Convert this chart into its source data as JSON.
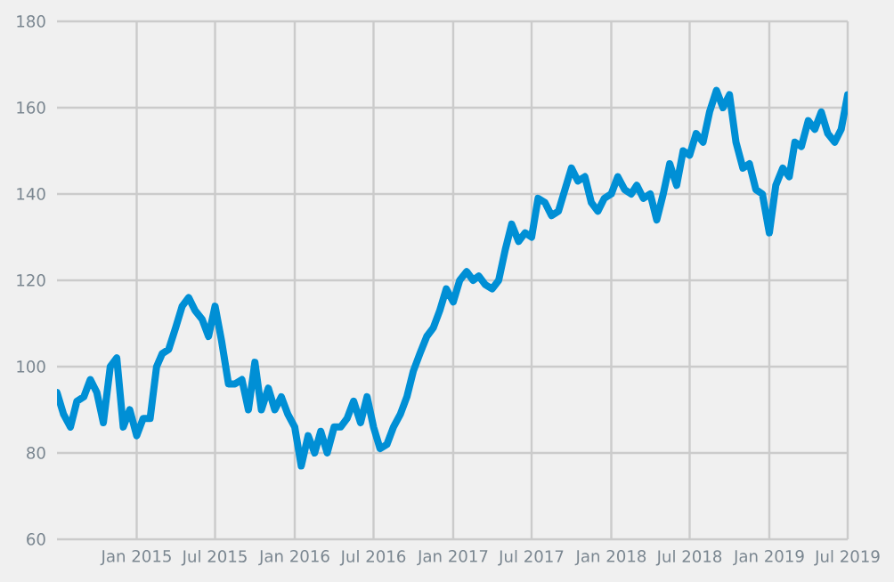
{
  "chart_data": {
    "type": "line",
    "x": [
      "2014-07-01",
      "2014-07-16",
      "2014-08-01",
      "2014-08-16",
      "2014-09-01",
      "2014-09-16",
      "2014-10-01",
      "2014-10-16",
      "2014-11-01",
      "2014-11-16",
      "2014-12-01",
      "2014-12-16",
      "2015-01-01",
      "2015-01-16",
      "2015-02-01",
      "2015-02-16",
      "2015-03-01",
      "2015-03-16",
      "2015-04-01",
      "2015-04-16",
      "2015-05-01",
      "2015-05-16",
      "2015-06-01",
      "2015-06-16",
      "2015-07-01",
      "2015-07-16",
      "2015-08-01",
      "2015-08-16",
      "2015-09-01",
      "2015-09-16",
      "2015-10-01",
      "2015-10-16",
      "2015-11-01",
      "2015-11-16",
      "2015-12-01",
      "2015-12-16",
      "2016-01-01",
      "2016-01-16",
      "2016-02-01",
      "2016-02-16",
      "2016-03-01",
      "2016-03-16",
      "2016-04-01",
      "2016-04-16",
      "2016-05-01",
      "2016-05-16",
      "2016-06-01",
      "2016-06-16",
      "2016-07-01",
      "2016-07-16",
      "2016-08-01",
      "2016-08-16",
      "2016-09-01",
      "2016-09-16",
      "2016-10-01",
      "2016-10-16",
      "2016-11-01",
      "2016-11-16",
      "2016-12-01",
      "2016-12-16",
      "2017-01-01",
      "2017-01-16",
      "2017-02-01",
      "2017-02-16",
      "2017-03-01",
      "2017-03-16",
      "2017-04-01",
      "2017-04-16",
      "2017-05-01",
      "2017-05-16",
      "2017-06-01",
      "2017-06-16",
      "2017-07-01",
      "2017-07-16",
      "2017-08-01",
      "2017-08-16",
      "2017-09-01",
      "2017-09-16",
      "2017-10-01",
      "2017-10-16",
      "2017-11-01",
      "2017-11-16",
      "2017-12-01",
      "2017-12-16",
      "2018-01-01",
      "2018-01-16",
      "2018-02-01",
      "2018-02-16",
      "2018-03-01",
      "2018-03-16",
      "2018-04-01",
      "2018-04-16",
      "2018-05-01",
      "2018-05-16",
      "2018-06-01",
      "2018-06-16",
      "2018-07-01",
      "2018-07-16",
      "2018-08-01",
      "2018-08-16",
      "2018-09-01",
      "2018-09-16",
      "2018-10-01",
      "2018-10-16",
      "2018-11-01",
      "2018-11-16",
      "2018-12-01",
      "2018-12-16",
      "2019-01-01",
      "2019-01-16",
      "2019-02-01",
      "2019-02-16",
      "2019-03-01",
      "2019-03-16",
      "2019-04-01",
      "2019-04-16",
      "2019-05-01",
      "2019-05-16",
      "2019-06-01",
      "2019-06-16",
      "2019-07-01"
    ],
    "series": [
      {
        "color": "#008fd5",
        "values": [
          94,
          89,
          86,
          92,
          93,
          97,
          94,
          87,
          100,
          102,
          86,
          90,
          84,
          88,
          88,
          100,
          103,
          104,
          109,
          114,
          116,
          113,
          111,
          107,
          114,
          106,
          96,
          96,
          97,
          90,
          101,
          90,
          95,
          90,
          93,
          89,
          86,
          77,
          84,
          80,
          85,
          80,
          86,
          86,
          88,
          92,
          87,
          93,
          86,
          81,
          82,
          86,
          89,
          93,
          99,
          103,
          107,
          109,
          113,
          118,
          115,
          120,
          122,
          120,
          121,
          119,
          118,
          120,
          127,
          133,
          129,
          131,
          130,
          139,
          138,
          135,
          136,
          141,
          146,
          143,
          144,
          138,
          136,
          139,
          140,
          144,
          141,
          140,
          142,
          139,
          140,
          134,
          140,
          147,
          142,
          150,
          149,
          154,
          152,
          159,
          164,
          160,
          163,
          152,
          146,
          147,
          141,
          140,
          131,
          142,
          146,
          144,
          152,
          151,
          157,
          155,
          159,
          154,
          152,
          155,
          163
        ]
      }
    ],
    "xlim": [
      "2014-07-01",
      "2019-07-01"
    ],
    "xticks": [
      {
        "value": "2015-01-01",
        "label": "Jan 2015"
      },
      {
        "value": "2015-07-01",
        "label": "Jul 2015"
      },
      {
        "value": "2016-01-01",
        "label": "Jan 2016"
      },
      {
        "value": "2016-07-01",
        "label": "Jul 2016"
      },
      {
        "value": "2017-01-01",
        "label": "Jan 2017"
      },
      {
        "value": "2017-07-01",
        "label": "Jul 2017"
      },
      {
        "value": "2018-01-01",
        "label": "Jan 2018"
      },
      {
        "value": "2018-07-01",
        "label": "Jul 2018"
      },
      {
        "value": "2019-01-01",
        "label": "Jan 2019"
      },
      {
        "value": "2019-07-01",
        "label": "Jul 2019"
      }
    ],
    "ylim": [
      60,
      180
    ],
    "yticks": [
      60,
      80,
      100,
      120,
      140,
      160,
      180
    ],
    "grid": true,
    "line_style": "solid",
    "marker": "none"
  }
}
